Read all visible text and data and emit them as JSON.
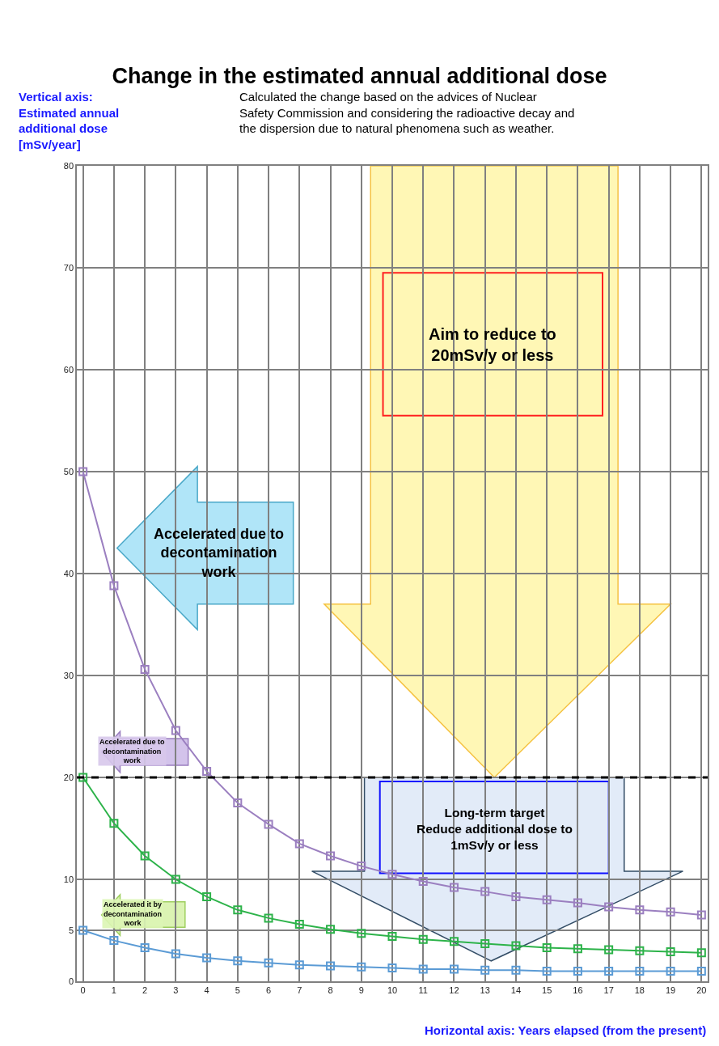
{
  "chart_data": {
    "type": "line",
    "title": "Change in the estimated annual additional dose",
    "xlabel": "Horizontal axis: Years elapsed (from the present)",
    "ylabel": "Vertical axis: Estimated annual additional dose [mSv/year]",
    "x": [
      0,
      1,
      2,
      3,
      4,
      5,
      6,
      7,
      8,
      9,
      10,
      11,
      12,
      13,
      14,
      15,
      16,
      17,
      18,
      19,
      20
    ],
    "series": [
      {
        "color": "#9b7fc0",
        "values": [
          50,
          38.8,
          30.6,
          24.6,
          20.6,
          17.5,
          15.4,
          13.5,
          12.3,
          11.3,
          10.5,
          9.8,
          9.2,
          8.8,
          8.3,
          8.0,
          7.7,
          7.3,
          7.0,
          6.8,
          6.5
        ]
      },
      {
        "color": "#2db34a",
        "values": [
          20,
          15.5,
          12.3,
          10,
          8.3,
          7.0,
          6.2,
          5.6,
          5.1,
          4.7,
          4.4,
          4.1,
          3.9,
          3.7,
          3.5,
          3.3,
          3.2,
          3.1,
          3.0,
          2.9,
          2.8
        ]
      },
      {
        "color": "#5b9bd5",
        "values": [
          5,
          4.0,
          3.3,
          2.7,
          2.3,
          2.0,
          1.8,
          1.6,
          1.5,
          1.4,
          1.3,
          1.2,
          1.2,
          1.1,
          1.1,
          1.0,
          1.0,
          1.0,
          1.0,
          1.0,
          1.0
        ]
      }
    ],
    "xlim": [
      -0.2,
      20.2
    ],
    "xticks": [
      0,
      1,
      2,
      3,
      4,
      5,
      6,
      7,
      8,
      9,
      10,
      11,
      12,
      13,
      14,
      15,
      16,
      17,
      18,
      19,
      20
    ],
    "ylim": [
      0,
      80
    ],
    "yticks": [
      0,
      5,
      10,
      20,
      30,
      40,
      50,
      60,
      70,
      80
    ],
    "grid": true,
    "marker": "square",
    "line_style": "solid",
    "ref_lines": [
      {
        "axis": "y",
        "value": 20,
        "color": "#000000",
        "line_style": "dashed"
      }
    ],
    "annotations": [
      "Calculated the change based on the advices of Nuclear Safety Commission and considering the radioactive decay and the dispersion due to natural phenomena such as weather.",
      "Aim to reduce to 20mSv/y or less",
      "Accelerated due to decontamination work",
      "Accelerated due to decontamination work",
      "Accelerated it by decontamination work",
      "Long-term target Reduce additional dose to 1mSv/y or less"
    ]
  }
}
